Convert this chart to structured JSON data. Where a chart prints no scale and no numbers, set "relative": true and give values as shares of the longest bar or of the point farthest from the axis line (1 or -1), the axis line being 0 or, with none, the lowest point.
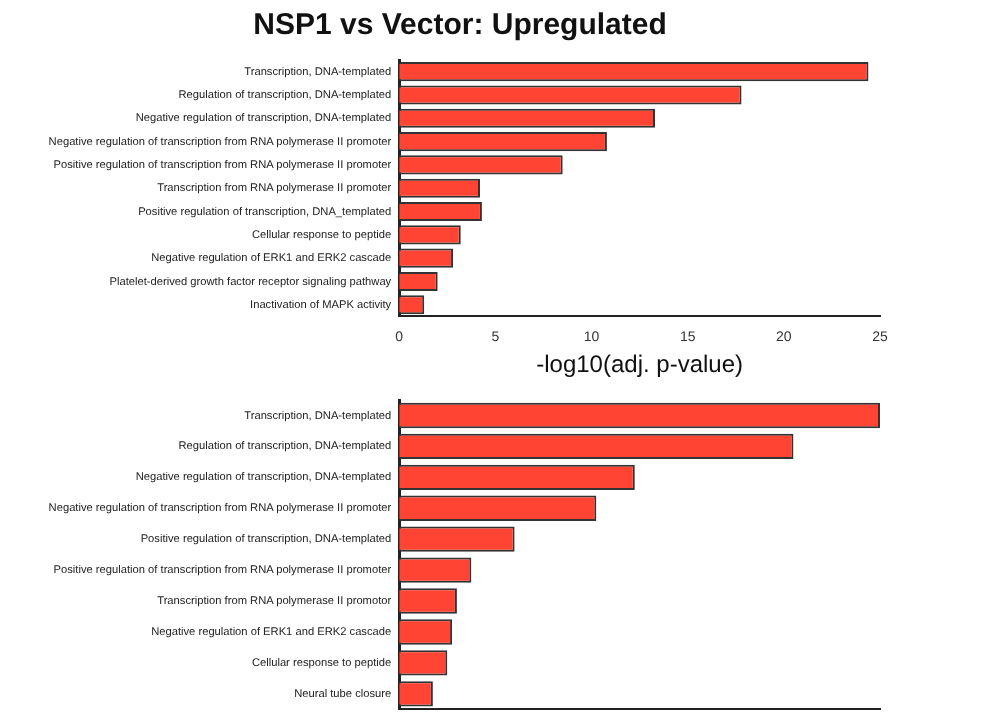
{
  "chart_data": [
    {
      "type": "bar",
      "orientation": "horizontal",
      "title": "NSP1 vs Vector: Upregulated",
      "xlabel": "-log10(adj. p-value)",
      "categories": [
        "Transcription, DNA-templated",
        "Regulation of transcription, DNA-templated",
        "Negative regulation of transcription, DNA-templated",
        "Negative regulation of transcription from RNA polymerase II promoter",
        "Positive regulation of transcription from RNA polymerase II promoter",
        "Transcription from RNA polymerase II promoter",
        "Positive regulation of transcription, DNA_templated",
        "Cellular response to peptide",
        "Negative regulation of ERK1 and ERK2 cascade",
        "Platelet-derived growth factor receptor signaling pathway",
        "Inactivation of MAPK activity"
      ],
      "values": [
        24.4,
        17.8,
        13.3,
        10.8,
        8.5,
        4.2,
        4.3,
        3.2,
        2.8,
        2.0,
        1.3
      ],
      "color": "#ff4433",
      "xlim": [
        0,
        25
      ],
      "xticks": [
        0,
        5,
        10,
        15,
        20,
        25
      ],
      "grid": false,
      "legend": false
    },
    {
      "type": "bar",
      "orientation": "horizontal",
      "relative": true,
      "categories": [
        "Transcription, DNA-templated",
        "Regulation of transcription, DNA-templated",
        "Negative regulation of transcription, DNA-templated",
        "Negative regulation of transcription from RNA polymerase II promoter",
        "Positive regulation of transcription, DNA-templated",
        "Positive regulation of transcription from RNA polymerase II promoter",
        "Transcription from RNA polymerase II promotor",
        "Negative regulation of ERK1 and ERK2 cascade",
        "Cellular response to peptide",
        "Neural tube closure"
      ],
      "values": [
        1,
        0.82,
        0.49,
        0.41,
        0.24,
        0.15,
        0.12,
        0.11,
        0.1,
        0.07
      ],
      "color": "#ff4433",
      "grid": false,
      "legend": false
    }
  ]
}
